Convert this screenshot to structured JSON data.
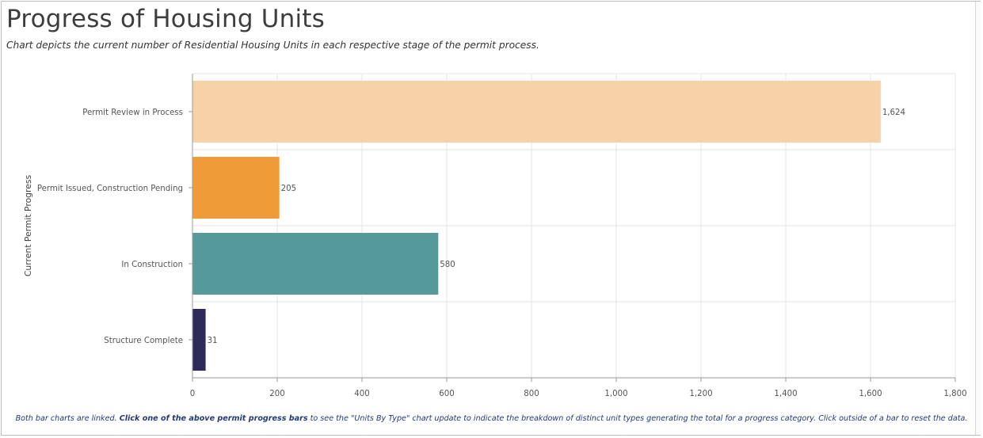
{
  "title": "Progress of Housing Units",
  "subtitle": "Chart depicts the current number of Residential Housing Units in each respective stage of the permit process.",
  "footer": {
    "part1": "Both bar charts are linked.  ",
    "part2_bold": "Click one of the above permit progress bars",
    "part3": " to see the \"Units By Type\" chart update to indicate the breakdown of distinct unit types generating the total for a progress category.  Click outside of a bar to reset the data."
  },
  "chart_data": {
    "type": "bar",
    "orientation": "horizontal",
    "categories": [
      "Permit Review in Process",
      "Permit Issued, Construction Pending",
      "In Construction",
      "Structure Complete"
    ],
    "values": [
      1624,
      205,
      580,
      31
    ],
    "value_labels": [
      "1,624",
      "205",
      "580",
      "31"
    ],
    "colors": [
      "#f6d2a6",
      "#ef9c38",
      "#56999b",
      "#2e2b5c"
    ],
    "ylabel": "Current Permit Progress",
    "xlabel": "",
    "xlim": [
      0,
      1800
    ],
    "xticks": [
      0,
      200,
      400,
      600,
      800,
      1000,
      1200,
      1400,
      1600,
      1800
    ],
    "xtick_labels": [
      "0",
      "200",
      "400",
      "600",
      "800",
      "1,000",
      "1,200",
      "1,400",
      "1,600",
      "1,800"
    ],
    "grid": true
  }
}
